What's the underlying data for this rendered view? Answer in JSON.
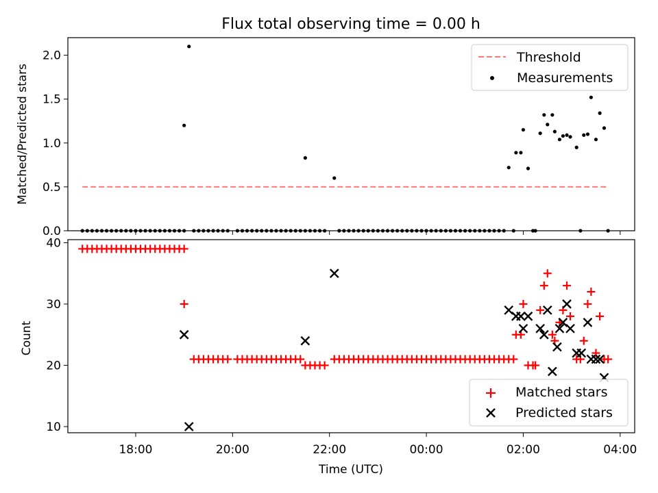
{
  "figure": {
    "title": "Flux total observing time = 0.00 h",
    "xlabel": "Time (UTC)",
    "xticks": [
      "18:00",
      "20:00",
      "22:00",
      "00:00",
      "02:00",
      "04:00"
    ]
  },
  "chart_data": [
    {
      "type": "scatter",
      "ylabel": "Matched/Predicted stars",
      "xlim": [
        16.6,
        28.3
      ],
      "ylim": [
        0,
        2.2
      ],
      "yticks": [
        0.0,
        0.5,
        1.0,
        1.5,
        2.0
      ],
      "ytick_labels": [
        "0.0",
        "0.5",
        "1.0",
        "1.5",
        "2.0"
      ],
      "x_unit": "hours since 00:00 UTC of the first day",
      "legend_position": "top-right",
      "threshold": {
        "name": "Threshold",
        "value": 0.5,
        "x_range": [
          16.9,
          27.75
        ],
        "color": "#ff7777"
      },
      "measurements": {
        "name": "Measurements",
        "color": "#000000",
        "points": [
          [
            16.9,
            0
          ],
          [
            17.0,
            0
          ],
          [
            17.1,
            0
          ],
          [
            17.2,
            0
          ],
          [
            17.3,
            0
          ],
          [
            17.4,
            0
          ],
          [
            17.5,
            0
          ],
          [
            17.6,
            0
          ],
          [
            17.7,
            0
          ],
          [
            17.8,
            0
          ],
          [
            17.9,
            0
          ],
          [
            18.0,
            0
          ],
          [
            18.1,
            0
          ],
          [
            18.2,
            0
          ],
          [
            18.3,
            0
          ],
          [
            18.4,
            0
          ],
          [
            18.5,
            0
          ],
          [
            18.6,
            0
          ],
          [
            18.7,
            0
          ],
          [
            18.8,
            0
          ],
          [
            18.9,
            0
          ],
          [
            19.0,
            0
          ],
          [
            19.0,
            1.2
          ],
          [
            19.1,
            2.1
          ],
          [
            19.2,
            0
          ],
          [
            19.3,
            0
          ],
          [
            19.4,
            0
          ],
          [
            19.5,
            0
          ],
          [
            19.6,
            0
          ],
          [
            19.7,
            0
          ],
          [
            19.8,
            0
          ],
          [
            19.9,
            0
          ],
          [
            20.1,
            0
          ],
          [
            20.2,
            0
          ],
          [
            20.3,
            0
          ],
          [
            20.4,
            0
          ],
          [
            20.5,
            0
          ],
          [
            20.6,
            0
          ],
          [
            20.7,
            0
          ],
          [
            20.8,
            0
          ],
          [
            20.9,
            0
          ],
          [
            21.0,
            0
          ],
          [
            21.1,
            0
          ],
          [
            21.2,
            0
          ],
          [
            21.3,
            0
          ],
          [
            21.4,
            0
          ],
          [
            21.5,
            0
          ],
          [
            21.5,
            0.83
          ],
          [
            21.6,
            0
          ],
          [
            21.7,
            0
          ],
          [
            21.8,
            0
          ],
          [
            21.9,
            0
          ],
          [
            22.1,
            0.6
          ],
          [
            22.2,
            0
          ],
          [
            22.3,
            0
          ],
          [
            22.4,
            0
          ],
          [
            22.5,
            0
          ],
          [
            22.6,
            0
          ],
          [
            22.7,
            0
          ],
          [
            22.8,
            0
          ],
          [
            22.9,
            0
          ],
          [
            23.0,
            0
          ],
          [
            23.1,
            0
          ],
          [
            23.2,
            0
          ],
          [
            23.3,
            0
          ],
          [
            23.4,
            0
          ],
          [
            23.5,
            0
          ],
          [
            23.6,
            0
          ],
          [
            23.7,
            0
          ],
          [
            23.8,
            0
          ],
          [
            23.9,
            0
          ],
          [
            24.0,
            0
          ],
          [
            24.1,
            0
          ],
          [
            24.2,
            0
          ],
          [
            24.3,
            0
          ],
          [
            24.4,
            0
          ],
          [
            24.5,
            0
          ],
          [
            24.6,
            0
          ],
          [
            24.7,
            0
          ],
          [
            24.8,
            0
          ],
          [
            24.9,
            0
          ],
          [
            25.0,
            0
          ],
          [
            25.1,
            0
          ],
          [
            25.2,
            0
          ],
          [
            25.3,
            0
          ],
          [
            25.4,
            0
          ],
          [
            25.5,
            0
          ],
          [
            25.6,
            0
          ],
          [
            25.7,
            0.72
          ],
          [
            25.8,
            0
          ],
          [
            25.85,
            0.89
          ],
          [
            25.95,
            0.89
          ],
          [
            26.0,
            1.15
          ],
          [
            26.1,
            0.71
          ],
          [
            26.2,
            0
          ],
          [
            26.25,
            0
          ],
          [
            26.35,
            1.11
          ],
          [
            26.43,
            1.32
          ],
          [
            26.5,
            1.21
          ],
          [
            26.6,
            1.32
          ],
          [
            26.65,
            1.13
          ],
          [
            26.75,
            1.04
          ],
          [
            26.82,
            1.08
          ],
          [
            26.9,
            1.09
          ],
          [
            26.97,
            1.07
          ],
          [
            27.1,
            0.95
          ],
          [
            27.18,
            0
          ],
          [
            27.25,
            1.09
          ],
          [
            27.33,
            1.1
          ],
          [
            27.4,
            1.52
          ],
          [
            27.5,
            1.04
          ],
          [
            27.58,
            1.34
          ],
          [
            27.67,
            1.17
          ],
          [
            27.75,
            0
          ]
        ]
      }
    },
    {
      "type": "scatter",
      "ylabel": "Count",
      "xlim": [
        16.6,
        28.3
      ],
      "ylim": [
        9,
        40.5
      ],
      "yticks": [
        10,
        20,
        30,
        40
      ],
      "ytick_labels": [
        "10",
        "20",
        "30",
        "40"
      ],
      "legend_position": "bottom-right",
      "series": [
        {
          "name": "Matched stars",
          "marker": "plus",
          "color": "#ff0000",
          "points": [
            [
              16.9,
              39
            ],
            [
              17.0,
              39
            ],
            [
              17.1,
              39
            ],
            [
              17.2,
              39
            ],
            [
              17.3,
              39
            ],
            [
              17.4,
              39
            ],
            [
              17.5,
              39
            ],
            [
              17.6,
              39
            ],
            [
              17.7,
              39
            ],
            [
              17.8,
              39
            ],
            [
              17.9,
              39
            ],
            [
              18.0,
              39
            ],
            [
              18.1,
              39
            ],
            [
              18.2,
              39
            ],
            [
              18.3,
              39
            ],
            [
              18.4,
              39
            ],
            [
              18.5,
              39
            ],
            [
              18.6,
              39
            ],
            [
              18.7,
              39
            ],
            [
              18.8,
              39
            ],
            [
              18.9,
              39
            ],
            [
              19.0,
              39
            ],
            [
              19.0,
              30
            ],
            [
              19.2,
              21
            ],
            [
              19.3,
              21
            ],
            [
              19.4,
              21
            ],
            [
              19.5,
              21
            ],
            [
              19.6,
              21
            ],
            [
              19.7,
              21
            ],
            [
              19.8,
              21
            ],
            [
              19.9,
              21
            ],
            [
              20.1,
              21
            ],
            [
              20.2,
              21
            ],
            [
              20.3,
              21
            ],
            [
              20.4,
              21
            ],
            [
              20.5,
              21
            ],
            [
              20.6,
              21
            ],
            [
              20.7,
              21
            ],
            [
              20.8,
              21
            ],
            [
              20.9,
              21
            ],
            [
              21.0,
              21
            ],
            [
              21.1,
              21
            ],
            [
              21.2,
              21
            ],
            [
              21.3,
              21
            ],
            [
              21.4,
              21
            ],
            [
              21.5,
              20
            ],
            [
              21.6,
              20
            ],
            [
              21.7,
              20
            ],
            [
              21.8,
              20
            ],
            [
              21.9,
              20
            ],
            [
              22.1,
              21
            ],
            [
              22.2,
              21
            ],
            [
              22.3,
              21
            ],
            [
              22.4,
              21
            ],
            [
              22.5,
              21
            ],
            [
              22.6,
              21
            ],
            [
              22.7,
              21
            ],
            [
              22.8,
              21
            ],
            [
              22.9,
              21
            ],
            [
              23.0,
              21
            ],
            [
              23.1,
              21
            ],
            [
              23.2,
              21
            ],
            [
              23.3,
              21
            ],
            [
              23.4,
              21
            ],
            [
              23.5,
              21
            ],
            [
              23.6,
              21
            ],
            [
              23.7,
              21
            ],
            [
              23.8,
              21
            ],
            [
              23.9,
              21
            ],
            [
              24.0,
              21
            ],
            [
              24.1,
              21
            ],
            [
              24.2,
              21
            ],
            [
              24.3,
              21
            ],
            [
              24.4,
              21
            ],
            [
              24.5,
              21
            ],
            [
              24.6,
              21
            ],
            [
              24.7,
              21
            ],
            [
              24.8,
              21
            ],
            [
              24.9,
              21
            ],
            [
              25.0,
              21
            ],
            [
              25.1,
              21
            ],
            [
              25.2,
              21
            ],
            [
              25.3,
              21
            ],
            [
              25.4,
              21
            ],
            [
              25.5,
              21
            ],
            [
              25.6,
              21
            ],
            [
              25.7,
              21
            ],
            [
              25.8,
              21
            ],
            [
              25.85,
              25
            ],
            [
              25.95,
              25
            ],
            [
              26.0,
              30
            ],
            [
              26.1,
              20
            ],
            [
              26.2,
              20
            ],
            [
              26.25,
              20
            ],
            [
              26.35,
              29
            ],
            [
              26.43,
              33
            ],
            [
              26.5,
              35
            ],
            [
              26.6,
              25
            ],
            [
              26.65,
              24
            ],
            [
              26.75,
              27
            ],
            [
              26.82,
              29
            ],
            [
              26.9,
              33
            ],
            [
              26.97,
              28
            ],
            [
              27.1,
              21
            ],
            [
              27.18,
              21
            ],
            [
              27.25,
              24
            ],
            [
              27.33,
              30
            ],
            [
              27.4,
              32
            ],
            [
              27.5,
              22
            ],
            [
              27.58,
              28
            ],
            [
              27.67,
              21
            ],
            [
              27.75,
              21
            ]
          ]
        },
        {
          "name": "Predicted stars",
          "marker": "x",
          "color": "#000000",
          "points": [
            [
              19.0,
              25
            ],
            [
              19.1,
              10
            ],
            [
              21.5,
              24
            ],
            [
              22.1,
              35
            ],
            [
              25.7,
              29
            ],
            [
              25.85,
              28
            ],
            [
              25.95,
              28
            ],
            [
              26.0,
              26
            ],
            [
              26.1,
              28
            ],
            [
              26.35,
              26
            ],
            [
              26.43,
              25
            ],
            [
              26.5,
              29
            ],
            [
              26.6,
              19
            ],
            [
              26.7,
              23
            ],
            [
              26.75,
              26
            ],
            [
              26.82,
              27
            ],
            [
              26.9,
              30
            ],
            [
              26.97,
              26
            ],
            [
              27.1,
              22
            ],
            [
              27.2,
              22
            ],
            [
              27.33,
              27
            ],
            [
              27.4,
              21
            ],
            [
              27.5,
              21
            ],
            [
              27.58,
              21
            ],
            [
              27.67,
              18
            ]
          ]
        }
      ]
    }
  ]
}
